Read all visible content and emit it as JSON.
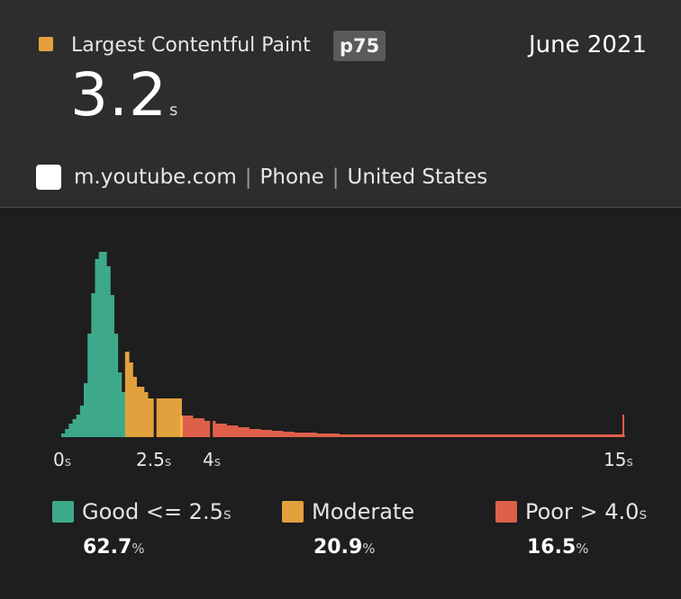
{
  "header": {
    "metric_name": "Largest Contentful Paint",
    "percentile_badge": "p75",
    "date": "June 2021",
    "value": "3.2",
    "value_unit": "s",
    "origin": "m.youtube.com",
    "separator": "|",
    "device": "Phone",
    "country": "United States",
    "metric_color": "#e3a13e"
  },
  "colors": {
    "good": "#3ea98a",
    "moderate": "#e3a13e",
    "poor": "#de5f4a",
    "p75_marker": "#f2b944"
  },
  "chart_data": {
    "type": "bar",
    "x_unit": "s",
    "bin_width": 0.1,
    "x_range": [
      0,
      15
    ],
    "ticks": [
      {
        "value": 0,
        "label": "0"
      },
      {
        "value": 2.5,
        "label": "2.5"
      },
      {
        "value": 4,
        "label": "4"
      },
      {
        "value": 15,
        "label": "15"
      }
    ],
    "thresholds": {
      "good": 2.5,
      "poor": 4.0
    },
    "p75": 3.2,
    "bins_good": [
      0.4,
      0.9,
      1.5,
      2.0,
      2.5,
      3.5,
      6.0,
      11.5,
      16.0,
      19.8,
      20.6,
      20.6,
      19.0,
      15.8,
      11.5,
      7.2,
      5.0
    ],
    "bins_moderate": [
      9.5,
      8.3,
      6.7,
      5.6,
      5.6,
      5.0,
      4.3,
      4.3,
      4.3,
      4.3,
      4.3,
      4.3,
      4.3,
      4.3,
      4.3
    ],
    "poor_bins_first": [
      2.4,
      2.4,
      2.4,
      2.1,
      2.1,
      2.1,
      1.8,
      1.8,
      1.8,
      1.5,
      1.5,
      1.5,
      1.3,
      1.3,
      1.3,
      1.1,
      1.1,
      1.1,
      0.9,
      0.9,
      0.9,
      0.8,
      0.8,
      0.8,
      0.7,
      0.7,
      0.7,
      0.6,
      0.6,
      0.6,
      0.5,
      0.5,
      0.5,
      0.5,
      0.5,
      0.5,
      0.4,
      0.4,
      0.4,
      0.4,
      0.4,
      0.4
    ],
    "poor_tail_value": 0.3,
    "poor_overflow_value": 2.5,
    "legend": [
      {
        "key": "good",
        "label": "Good <= 2.5",
        "unit": "s",
        "percent": "62.7",
        "pct_sign": "%"
      },
      {
        "key": "moderate",
        "label": "Moderate",
        "unit": "",
        "percent": "20.9",
        "pct_sign": "%"
      },
      {
        "key": "poor",
        "label": "Poor > 4.0",
        "unit": "s",
        "percent": "16.5",
        "pct_sign": "%"
      }
    ]
  }
}
